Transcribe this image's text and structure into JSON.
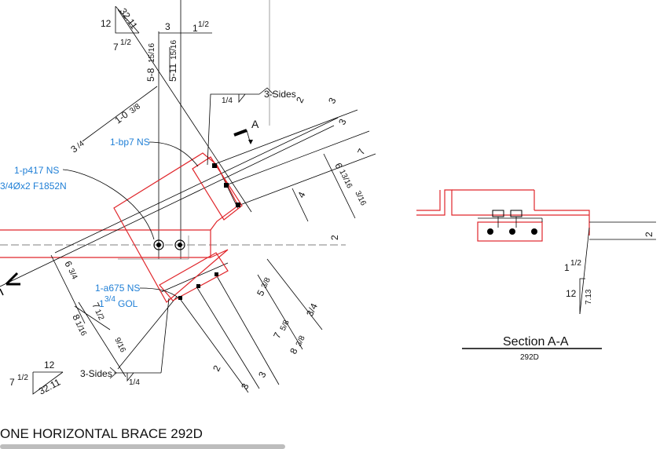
{
  "drawing": {
    "title": "ONE HORIZONTAL BRACE 292D",
    "bevel_top": {
      "rise": "12",
      "run": "7",
      "run_frac": "1/2",
      "hyp": "32.11"
    },
    "bevel_bottom": {
      "rise": "12",
      "run": "7",
      "run_frac": "1/2",
      "hyp": "32.11"
    },
    "top_dims": {
      "a": "3",
      "b": "1",
      "b_frac": "1/2"
    },
    "vert_dims": {
      "a": "5-8",
      "a_frac": "15/16",
      "b": "5-11",
      "b_frac": "15/16"
    },
    "dim_1_03_8": {
      "whole": "1-0",
      "frac": "3/8"
    },
    "dim_3_4": {
      "whole": "3",
      "frac": "/4"
    },
    "weld_top": {
      "size": "1/4",
      "note": "3-Sides"
    },
    "weld_bottom": {
      "size": "1/4",
      "note": "3-Sides"
    },
    "section_marker": "A",
    "right_dims": {
      "d1": "2",
      "d2": "3",
      "d3": "3",
      "d4": "7",
      "d5_whole": "6",
      "d5_frac": "13/16",
      "d6": "3/16",
      "d7": "4"
    },
    "middle_right_dims": {
      "d1_whole": "5",
      "d1_frac": "3/8",
      "d2": "3/4",
      "d3_whole": "7",
      "d3_frac": "5/8",
      "d4_whole": "8",
      "d4_frac": "3/8"
    },
    "bottom_dims": {
      "d1": "2",
      "d2": "3",
      "d3": "3"
    },
    "left_dims": {
      "d1_whole": "6",
      "d1_frac": "3/4",
      "d2_whole": "7",
      "d2_frac": "1/2",
      "d3_whole": "8",
      "d3_frac": "1/16",
      "d4": "9/16"
    },
    "centerline_dim": "2",
    "labels": {
      "bp7": "1-bp7 NS",
      "p417": "1-p417 NS",
      "p417_bolt": "3/4Øx2 F1852N",
      "a675": "1-a675 NS",
      "a675_gol": "1",
      "a675_gol_frac": "3/4",
      "a675_gol_text": "GOL"
    },
    "section": {
      "title": "Section A-A",
      "subtitle": "292D",
      "dim_a": "2",
      "bevel_run": "1",
      "bevel_run_frac": "1/2",
      "bevel_rise": "12",
      "bevel_hyp": "7.13"
    }
  }
}
